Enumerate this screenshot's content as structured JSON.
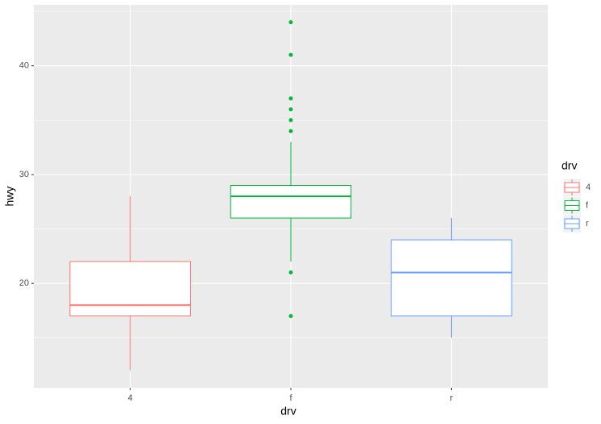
{
  "chart_data": {
    "type": "boxplot",
    "x_label": "drv",
    "y_label": "hwy",
    "categories": [
      "4",
      "f",
      "r"
    ],
    "colors": [
      "#F8766D",
      "#00BA38",
      "#619CFF"
    ],
    "boxes": [
      {
        "min": 12,
        "q1": 17,
        "median": 18,
        "q3": 22,
        "max": 28,
        "outliers": []
      },
      {
        "min": 22,
        "q1": 26,
        "median": 28,
        "q3": 29,
        "max": 33,
        "outliers": [
          44,
          41,
          37,
          36,
          35,
          34,
          21,
          17
        ]
      },
      {
        "min": 15,
        "q1": 17,
        "median": 21,
        "q3": 24,
        "max": 26,
        "outliers": []
      }
    ],
    "ylim": [
      10.4,
      45.6
    ],
    "yticks": [
      20,
      30,
      40
    ],
    "yminor": [
      15,
      25,
      35,
      45
    ],
    "grid": true,
    "legend_title": "drv",
    "legend": "right"
  }
}
